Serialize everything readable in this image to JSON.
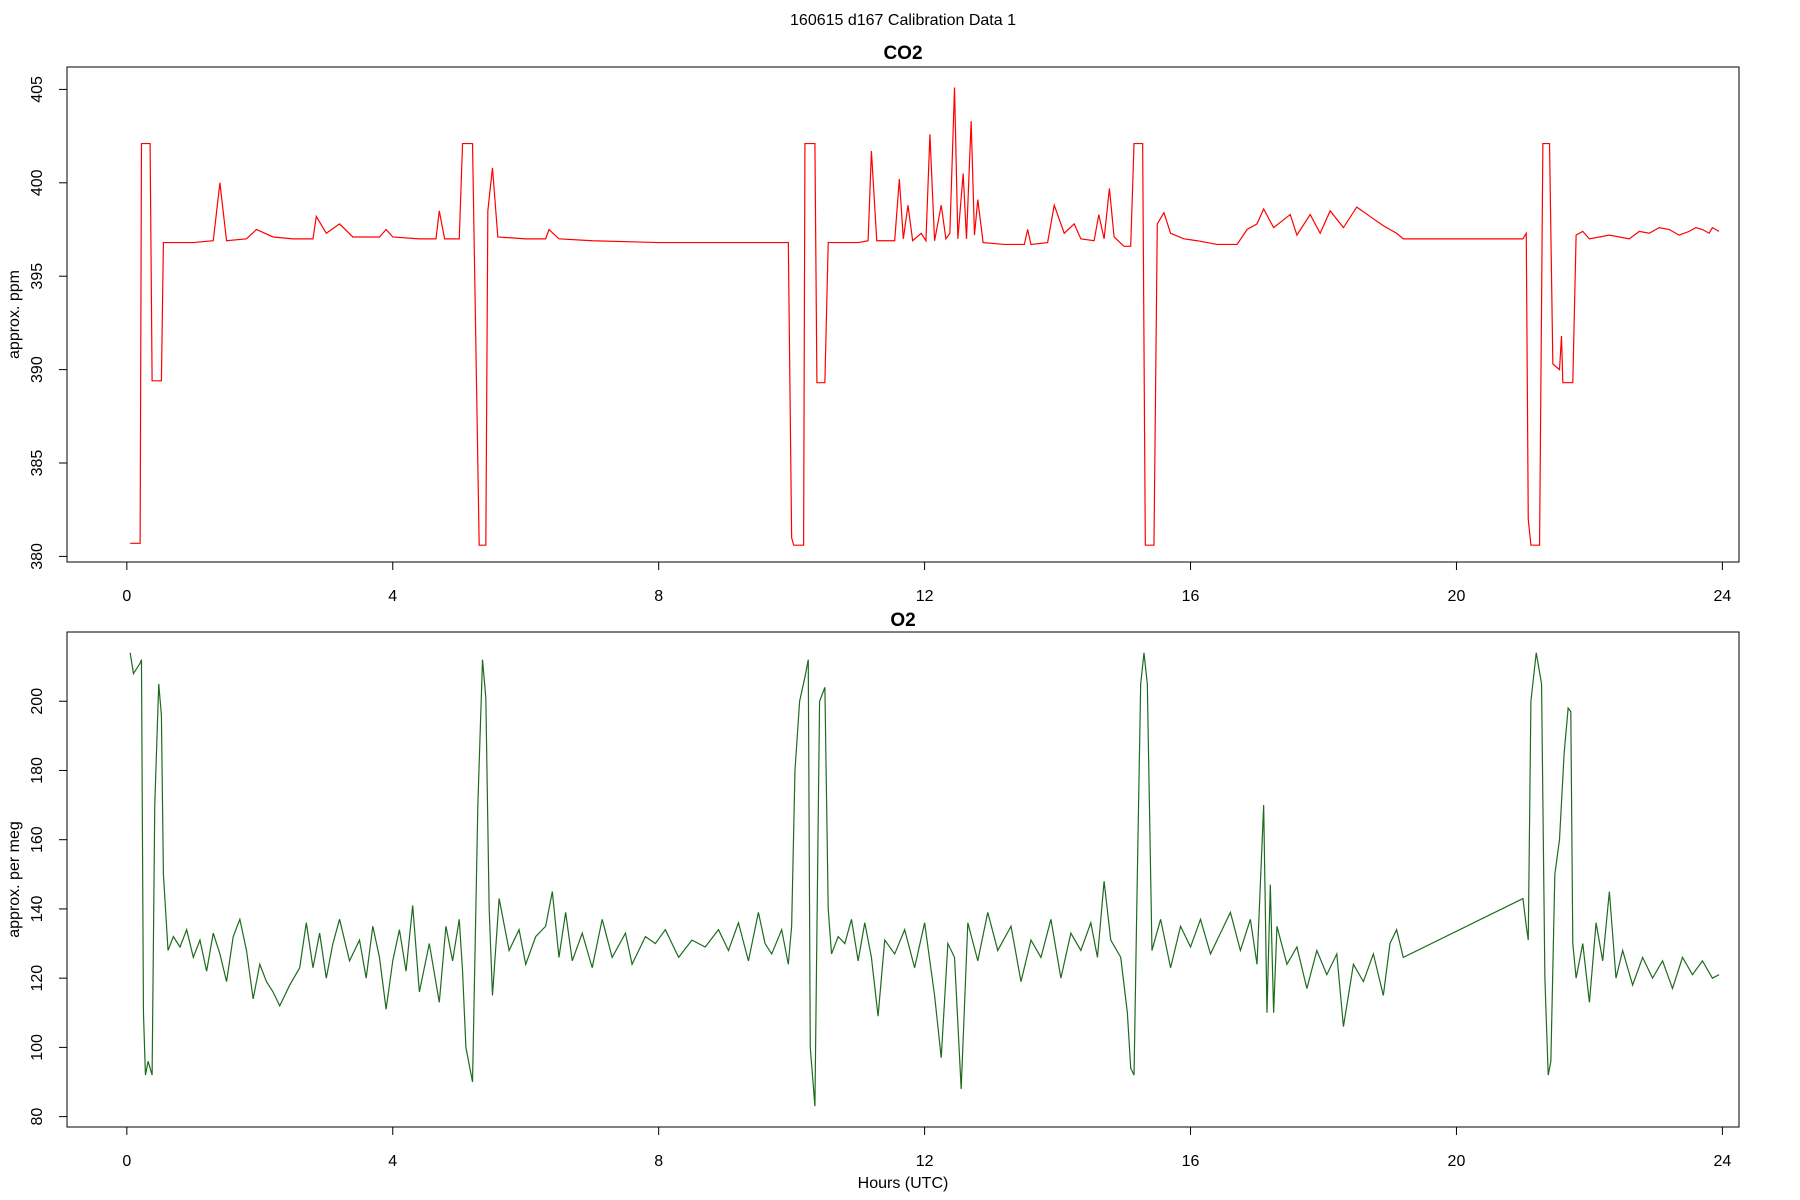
{
  "title": "160615   d167   Calibration Data 1",
  "chart_data": [
    {
      "type": "line",
      "title": "CO2",
      "ylabel": "approx. ppm",
      "color": "#ff0000",
      "xlim": [
        -0.9,
        24.25
      ],
      "ylim": [
        379.7,
        406.2
      ],
      "xticks": [
        0,
        4,
        8,
        12,
        16,
        20,
        24
      ],
      "yticks": [
        380,
        385,
        390,
        395,
        400,
        405
      ],
      "x": [
        0.05,
        0.2,
        0.22,
        0.35,
        0.38,
        0.52,
        0.55,
        1.0,
        1.3,
        1.4,
        1.5,
        1.8,
        1.95,
        2.2,
        2.5,
        2.8,
        2.85,
        3.0,
        3.2,
        3.4,
        3.8,
        3.9,
        4.0,
        4.4,
        4.65,
        4.7,
        4.78,
        5.0,
        5.05,
        5.2,
        5.3,
        5.4,
        5.43,
        5.5,
        5.58,
        6.0,
        6.3,
        6.35,
        6.5,
        7.0,
        8.0,
        9.0,
        9.95,
        10.0,
        10.03,
        10.18,
        10.2,
        10.35,
        10.38,
        10.5,
        10.55,
        11.0,
        11.15,
        11.2,
        11.28,
        11.45,
        11.55,
        11.62,
        11.68,
        11.75,
        11.82,
        11.95,
        12.02,
        12.08,
        12.15,
        12.25,
        12.32,
        12.38,
        12.45,
        12.5,
        12.58,
        12.63,
        12.7,
        12.75,
        12.8,
        12.88,
        13.2,
        13.5,
        13.55,
        13.6,
        13.85,
        13.95,
        14.1,
        14.25,
        14.35,
        14.55,
        14.62,
        14.7,
        14.78,
        14.85,
        15.0,
        15.1,
        15.15,
        15.28,
        15.32,
        15.45,
        15.5,
        15.6,
        15.7,
        15.9,
        16.1,
        16.4,
        16.7,
        16.85,
        17.0,
        17.1,
        17.25,
        17.5,
        17.6,
        17.8,
        17.95,
        18.1,
        18.3,
        18.5,
        18.7,
        18.9,
        19.1,
        19.2,
        20.0,
        21.0,
        21.05,
        21.08,
        21.12,
        21.25,
        21.3,
        21.4,
        21.45,
        21.55,
        21.58,
        21.6,
        21.75,
        21.8,
        21.9,
        22.0,
        22.3,
        22.6,
        22.75,
        22.9,
        23.05,
        23.2,
        23.35,
        23.5,
        23.6,
        23.7,
        23.8,
        23.85,
        23.95
      ],
      "values": [
        380.7,
        380.7,
        402.1,
        402.1,
        389.4,
        389.4,
        396.8,
        396.8,
        396.9,
        400.0,
        396.9,
        397.0,
        397.5,
        397.1,
        397.0,
        397.0,
        398.2,
        397.3,
        397.8,
        397.1,
        397.1,
        397.5,
        397.1,
        397.0,
        397.0,
        398.5,
        397.0,
        397.0,
        402.1,
        402.1,
        380.6,
        380.6,
        398.5,
        400.8,
        397.1,
        397.0,
        397.0,
        397.5,
        397.0,
        396.9,
        396.8,
        396.8,
        396.8,
        381.0,
        380.6,
        380.6,
        402.1,
        402.1,
        389.3,
        389.3,
        396.8,
        396.8,
        396.9,
        401.7,
        396.9,
        396.9,
        396.9,
        400.2,
        397.0,
        398.8,
        396.9,
        397.3,
        396.9,
        402.6,
        396.9,
        398.8,
        397.0,
        397.3,
        405.1,
        397.0,
        400.5,
        397.0,
        403.3,
        397.2,
        399.1,
        396.8,
        396.7,
        396.7,
        397.5,
        396.7,
        396.8,
        398.8,
        397.3,
        397.8,
        397.0,
        396.9,
        398.3,
        397.0,
        399.7,
        397.1,
        396.6,
        396.6,
        402.1,
        402.1,
        380.6,
        380.6,
        397.8,
        398.4,
        397.3,
        397.0,
        396.9,
        396.7,
        396.7,
        397.5,
        397.8,
        398.6,
        397.6,
        398.3,
        397.2,
        398.3,
        397.3,
        398.5,
        397.6,
        398.7,
        398.2,
        397.7,
        397.3,
        397.0,
        397.0,
        397.0,
        397.3,
        382.0,
        380.6,
        380.6,
        402.1,
        402.1,
        390.3,
        390.0,
        391.8,
        389.3,
        389.3,
        397.2,
        397.4,
        397.0,
        397.2,
        397.0,
        397.4,
        397.3,
        397.6,
        397.5,
        397.2,
        397.4,
        397.6,
        397.5,
        397.3,
        397.6,
        397.4
      ]
    },
    {
      "type": "line",
      "title": "O2",
      "ylabel": "approx. per meg",
      "xlabel": "Hours (UTC)",
      "color": "#1e6b1e",
      "xlim": [
        -0.9,
        24.25
      ],
      "ylim": [
        77,
        220
      ],
      "xticks": [
        0,
        4,
        8,
        12,
        16,
        20,
        24
      ],
      "yticks": [
        80,
        100,
        120,
        140,
        160,
        180,
        200
      ],
      "x": [
        0.05,
        0.1,
        0.2,
        0.22,
        0.25,
        0.28,
        0.32,
        0.38,
        0.42,
        0.48,
        0.52,
        0.55,
        0.62,
        0.7,
        0.8,
        0.9,
        1.0,
        1.1,
        1.2,
        1.3,
        1.4,
        1.5,
        1.6,
        1.7,
        1.8,
        1.9,
        2.0,
        2.1,
        2.2,
        2.3,
        2.45,
        2.6,
        2.7,
        2.8,
        2.9,
        3.0,
        3.1,
        3.2,
        3.35,
        3.5,
        3.6,
        3.7,
        3.8,
        3.9,
        4.0,
        4.1,
        4.2,
        4.3,
        4.4,
        4.55,
        4.7,
        4.8,
        4.9,
        5.0,
        5.05,
        5.1,
        5.2,
        5.28,
        5.35,
        5.4,
        5.45,
        5.5,
        5.6,
        5.75,
        5.9,
        6.0,
        6.15,
        6.3,
        6.4,
        6.5,
        6.6,
        6.7,
        6.85,
        7.0,
        7.15,
        7.3,
        7.5,
        7.6,
        7.8,
        7.95,
        8.1,
        8.3,
        8.5,
        8.7,
        8.9,
        9.05,
        9.2,
        9.35,
        9.5,
        9.6,
        9.7,
        9.85,
        9.95,
        10.0,
        10.05,
        10.12,
        10.2,
        10.25,
        10.28,
        10.35,
        10.42,
        10.5,
        10.55,
        10.6,
        10.7,
        10.8,
        10.9,
        11.0,
        11.1,
        11.2,
        11.3,
        11.4,
        11.55,
        11.7,
        11.85,
        12.0,
        12.15,
        12.25,
        12.35,
        12.45,
        12.55,
        12.65,
        12.8,
        12.95,
        13.1,
        13.3,
        13.45,
        13.6,
        13.75,
        13.9,
        14.05,
        14.2,
        14.35,
        14.5,
        14.6,
        14.7,
        14.8,
        14.95,
        15.05,
        15.1,
        15.15,
        15.2,
        15.25,
        15.3,
        15.35,
        15.42,
        15.55,
        15.7,
        15.85,
        16.0,
        16.15,
        16.3,
        16.45,
        16.6,
        16.75,
        16.9,
        17.0,
        17.1,
        17.15,
        17.2,
        17.25,
        17.3,
        17.45,
        17.6,
        17.75,
        17.9,
        18.05,
        18.2,
        18.3,
        18.45,
        18.6,
        18.75,
        18.9,
        19.0,
        19.1,
        19.2,
        21.0,
        21.05,
        21.08,
        21.12,
        21.2,
        21.28,
        21.33,
        21.38,
        21.42,
        21.48,
        21.55,
        21.62,
        21.68,
        21.72,
        21.75,
        21.8,
        21.9,
        22.0,
        22.1,
        22.2,
        22.3,
        22.4,
        22.5,
        22.65,
        22.8,
        22.95,
        23.1,
        23.25,
        23.4,
        23.55,
        23.7,
        23.85,
        23.95
      ],
      "values": [
        214,
        208,
        211,
        212,
        110,
        92,
        96,
        92,
        170,
        205,
        196,
        150,
        128,
        132,
        129,
        134,
        126,
        131,
        122,
        133,
        127,
        119,
        132,
        137,
        128,
        114,
        124,
        119,
        116,
        112,
        118,
        123,
        136,
        123,
        133,
        120,
        130,
        137,
        125,
        131,
        120,
        135,
        126,
        111,
        125,
        134,
        122,
        141,
        116,
        130,
        113,
        135,
        125,
        137,
        122,
        100,
        90,
        170,
        212,
        201,
        140,
        115,
        143,
        128,
        134,
        124,
        132,
        135,
        145,
        126,
        139,
        125,
        133,
        123,
        137,
        126,
        133,
        124,
        132,
        130,
        134,
        126,
        131,
        129,
        134,
        128,
        136,
        125,
        139,
        130,
        127,
        134,
        124,
        135,
        180,
        200,
        207,
        212,
        100,
        83,
        200,
        204,
        140,
        127,
        132,
        130,
        137,
        125,
        136,
        126,
        109,
        131,
        127,
        134,
        123,
        136,
        115,
        97,
        130,
        126,
        88,
        136,
        125,
        139,
        128,
        135,
        119,
        131,
        126,
        137,
        120,
        133,
        128,
        136,
        126,
        148,
        131,
        126,
        110,
        94,
        92,
        150,
        205,
        214,
        205,
        128,
        137,
        123,
        135,
        129,
        137,
        127,
        133,
        139,
        128,
        137,
        124,
        170,
        110,
        147,
        110,
        135,
        124,
        129,
        117,
        128,
        121,
        127,
        106,
        124,
        119,
        127,
        115,
        130,
        134,
        126,
        143,
        135,
        131,
        200,
        214,
        205,
        120,
        92,
        96,
        150,
        160,
        185,
        198,
        197,
        130,
        120,
        130,
        113,
        136,
        125,
        145,
        120,
        128,
        118,
        126,
        120,
        125,
        117,
        126,
        121,
        125,
        120,
        121
      ]
    }
  ]
}
